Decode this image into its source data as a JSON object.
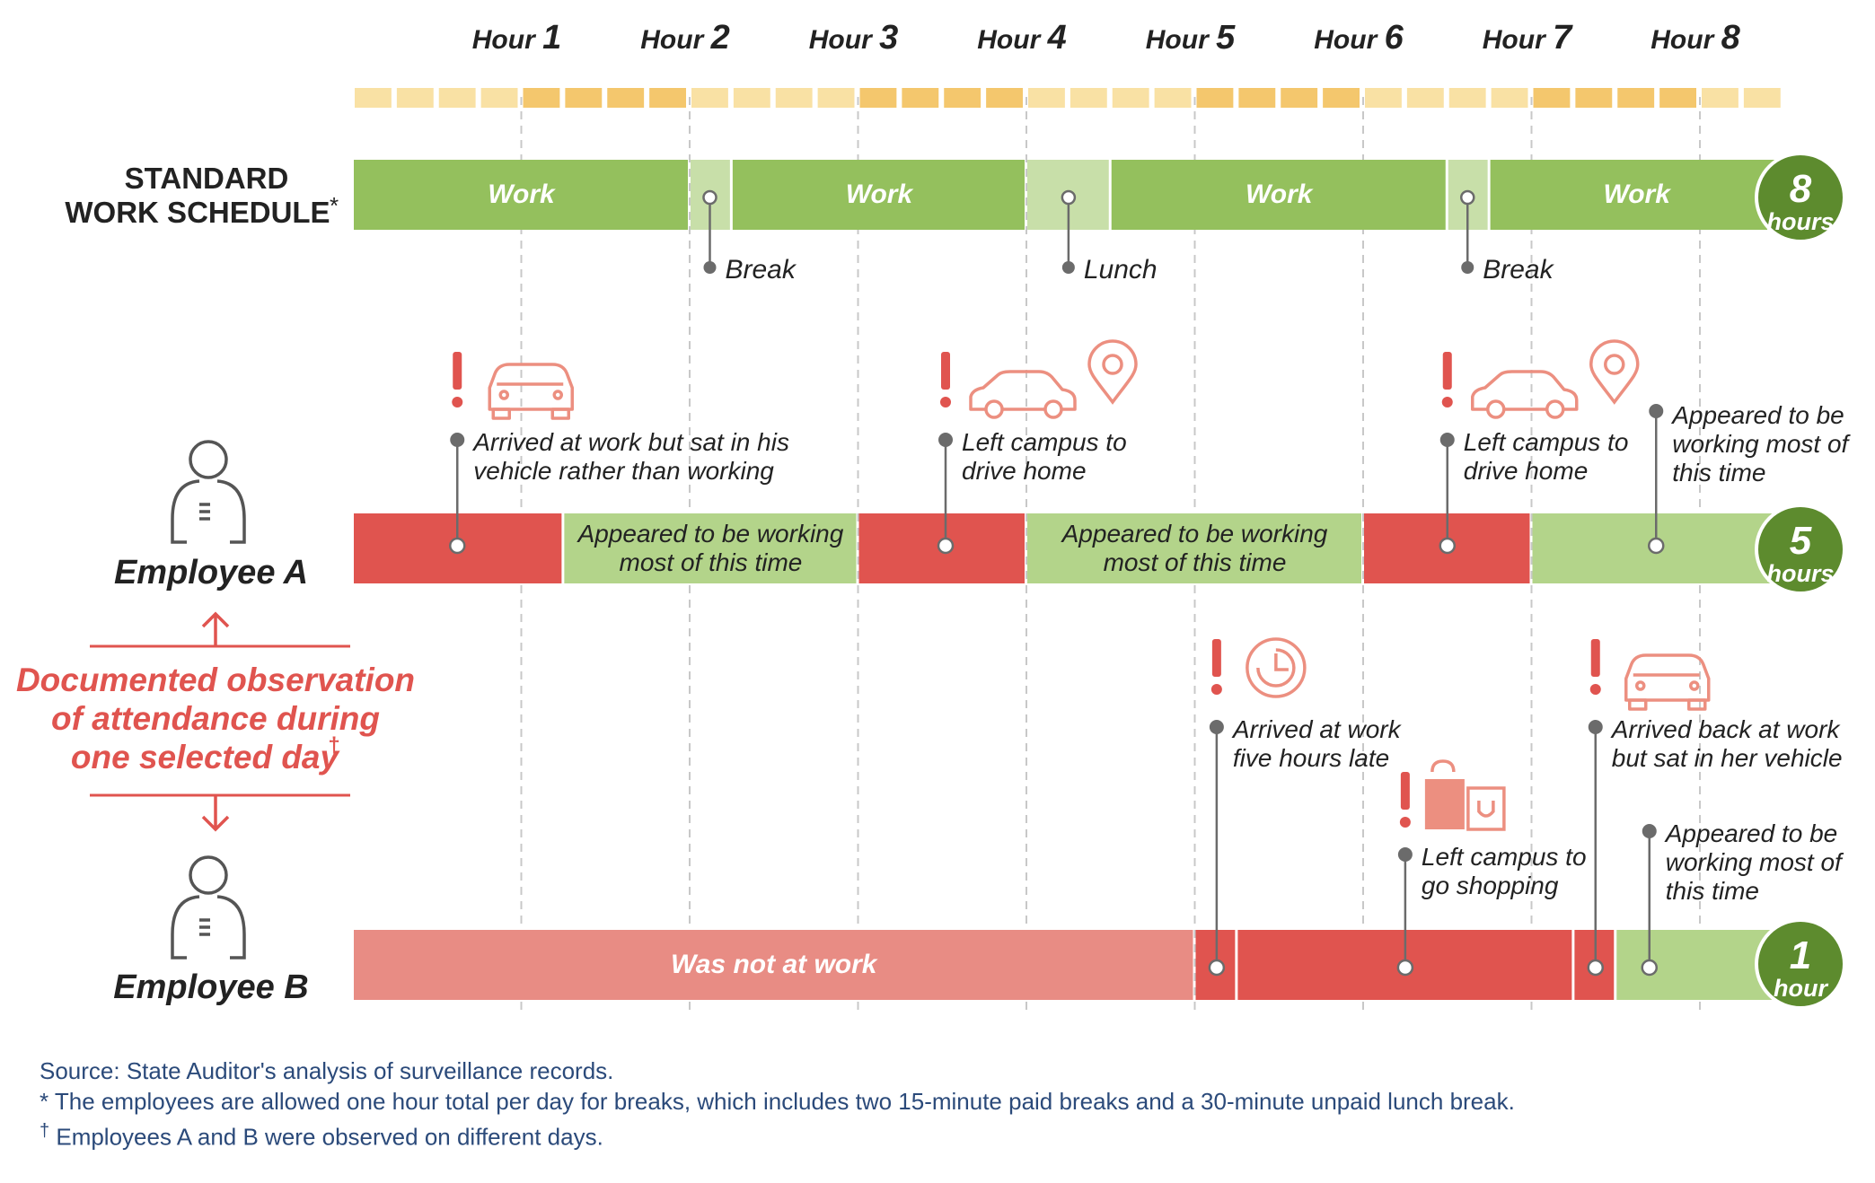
{
  "timeline": {
    "hours": [
      "Hour 1",
      "Hour 2",
      "Hour 3",
      "Hour 4",
      "Hour 5",
      "Hour 6",
      "Hour 7",
      "Hour 8"
    ],
    "total_hours": 8.5,
    "colors": {
      "tick_light": "#f9e1a4",
      "tick_dark": "#f4c76d",
      "gridline": "#c8c8c8"
    }
  },
  "colors": {
    "work_green": "#94c05d",
    "break_green": "#c8dfa9",
    "appeared_green": "#b3d48a",
    "red": "#e0544f",
    "light_red": "#e88c84",
    "hours_badge": "#5d8b2e",
    "marker": "#6b6b6b",
    "observation_red": "#e0544f",
    "icon_salmon": "#ec8f80"
  },
  "standard": {
    "label_line1": "STANDARD",
    "label_line2": "WORK SCHEDULE",
    "label_mark": "*",
    "segments": [
      {
        "start": 0,
        "end": 2,
        "kind": "work",
        "text": "Work"
      },
      {
        "start": 2,
        "end": 2.25,
        "kind": "break",
        "text": ""
      },
      {
        "start": 2.25,
        "end": 4,
        "kind": "work",
        "text": "Work"
      },
      {
        "start": 4,
        "end": 4.5,
        "kind": "break",
        "text": ""
      },
      {
        "start": 4.5,
        "end": 6.5,
        "kind": "work",
        "text": "Work"
      },
      {
        "start": 6.5,
        "end": 6.75,
        "kind": "break",
        "text": ""
      },
      {
        "start": 6.75,
        "end": 8.5,
        "kind": "work",
        "text": "Work"
      }
    ],
    "callouts": [
      {
        "at": 2.12,
        "text": "Break"
      },
      {
        "at": 4.25,
        "text": "Lunch"
      },
      {
        "at": 6.62,
        "text": "Break"
      }
    ],
    "badge_num": "8",
    "badge_unit": "hours"
  },
  "employee_a": {
    "name": "Employee A",
    "segments": [
      {
        "start": 0,
        "end": 1.25,
        "kind": "red",
        "text": ""
      },
      {
        "start": 1.25,
        "end": 3,
        "kind": "appeared",
        "text": "Appeared to be working\nmost of this time"
      },
      {
        "start": 3,
        "end": 4,
        "kind": "red",
        "text": ""
      },
      {
        "start": 4,
        "end": 6,
        "kind": "appeared",
        "text": "Appeared to be working\nmost of this time"
      },
      {
        "start": 6,
        "end": 7,
        "kind": "red",
        "text": ""
      },
      {
        "start": 7,
        "end": 8.5,
        "kind": "appeared",
        "text": ""
      }
    ],
    "events": [
      {
        "at": 0.62,
        "text": "Arrived at work but sat in his\nvehicle rather than working",
        "icons": [
          "car"
        ],
        "alert": true
      },
      {
        "at": 3.52,
        "text": "Left campus to\ndrive home",
        "icons": [
          "car",
          "pin"
        ],
        "alert": true
      },
      {
        "at": 6.5,
        "text": "Left campus to\ndrive home",
        "icons": [
          "car",
          "pin"
        ],
        "alert": true
      },
      {
        "at": 7.74,
        "text": "Appeared to be\nworking most of\nthis time",
        "icons": [],
        "alert": false
      }
    ],
    "badge_num": "5",
    "badge_unit": "hours"
  },
  "observation": {
    "line1": "Documented observation",
    "line2": "of attendance during",
    "line3": "one selected day",
    "mark": "†"
  },
  "employee_b": {
    "name": "Employee B",
    "segments": [
      {
        "start": 0,
        "end": 5,
        "kind": "lightred",
        "text": "Was not at work"
      },
      {
        "start": 5,
        "end": 5.25,
        "kind": "red",
        "text": ""
      },
      {
        "start": 5.25,
        "end": 7.25,
        "kind": "red",
        "text": ""
      },
      {
        "start": 7.25,
        "end": 7.5,
        "kind": "red",
        "text": ""
      },
      {
        "start": 7.5,
        "end": 8.5,
        "kind": "appeared",
        "text": ""
      }
    ],
    "events": [
      {
        "at": 5.13,
        "text": "Arrived at work\nfive hours late",
        "icons": [
          "clock"
        ],
        "alert": true
      },
      {
        "at": 6.25,
        "text": "Left campus to\ngo shopping",
        "icons": [
          "bag"
        ],
        "alert": true
      },
      {
        "at": 7.38,
        "text": "Arrived back at work\nbut sat in her vehicle",
        "icons": [
          "car"
        ],
        "alert": true
      },
      {
        "at": 7.7,
        "text": "Appeared to be\nworking most of\nthis time",
        "icons": [],
        "alert": false
      }
    ],
    "badge_num": "1",
    "badge_unit": "hour"
  },
  "footer": {
    "source": "Source: State Auditor's analysis of surveillance records.",
    "note1": "* The employees are allowed one hour total per day for breaks, which includes two 15-minute paid breaks and a 30-minute unpaid lunch break.",
    "note2_mark": "†",
    "note2": " Employees A and B were observed on different days."
  }
}
